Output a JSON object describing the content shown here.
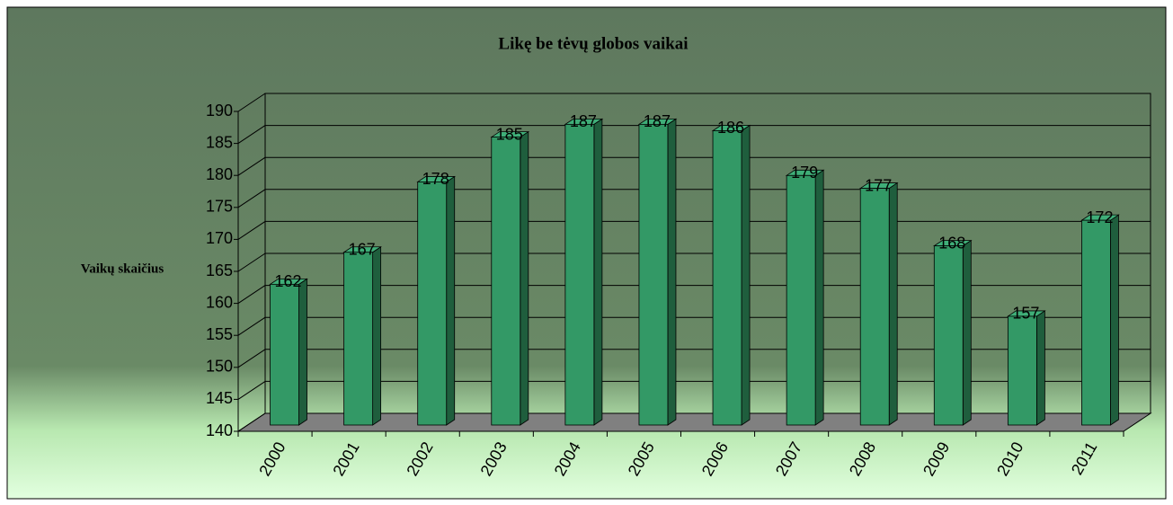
{
  "chart_data": {
    "type": "bar3d",
    "title": "Likę be tėvų globos vaikai",
    "y_label": "Vaikų skaičius",
    "categories": [
      "2000",
      "2001",
      "2002",
      "2003",
      "2004",
      "2005",
      "2006",
      "2007",
      "2008",
      "2009",
      "2010",
      "2011"
    ],
    "values": [
      162,
      167,
      178,
      185,
      187,
      187,
      186,
      179,
      177,
      168,
      157,
      172
    ],
    "color": "#339966",
    "ylim": [
      140,
      190
    ],
    "yticks": [
      140,
      145,
      150,
      155,
      160,
      165,
      170,
      175,
      180,
      185,
      190
    ],
    "grid": true
  }
}
